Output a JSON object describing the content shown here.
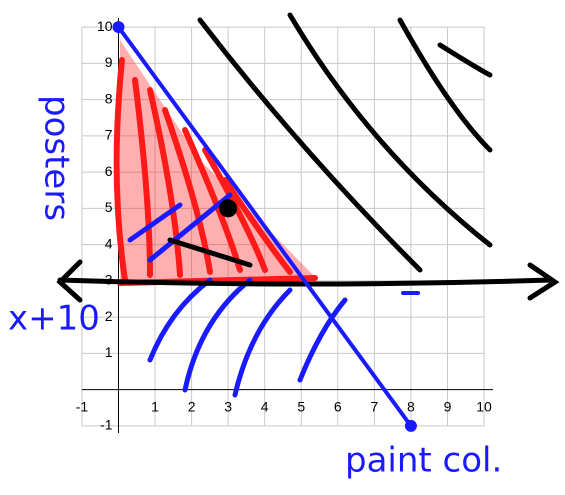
{
  "chart_data": {
    "type": "line",
    "xlim": [
      -1.6,
      10.3
    ],
    "ylim": [
      -1.25,
      10.25
    ],
    "xticks": [
      -1,
      1,
      2,
      3,
      4,
      5,
      6,
      7,
      8,
      9,
      10
    ],
    "yticks": [
      -1,
      1,
      2,
      3,
      4,
      5,
      6,
      7,
      8,
      9,
      10
    ],
    "grid": true,
    "series": [
      {
        "color": "#1a1aff",
        "x": [
          0,
          8
        ],
        "values": [
          10,
          -1
        ]
      },
      {
        "color": "#000000",
        "x": [
          3
        ],
        "values": [
          5
        ]
      }
    ],
    "annotations": [
      "posters",
      "x+10",
      "paint col."
    ]
  }
}
